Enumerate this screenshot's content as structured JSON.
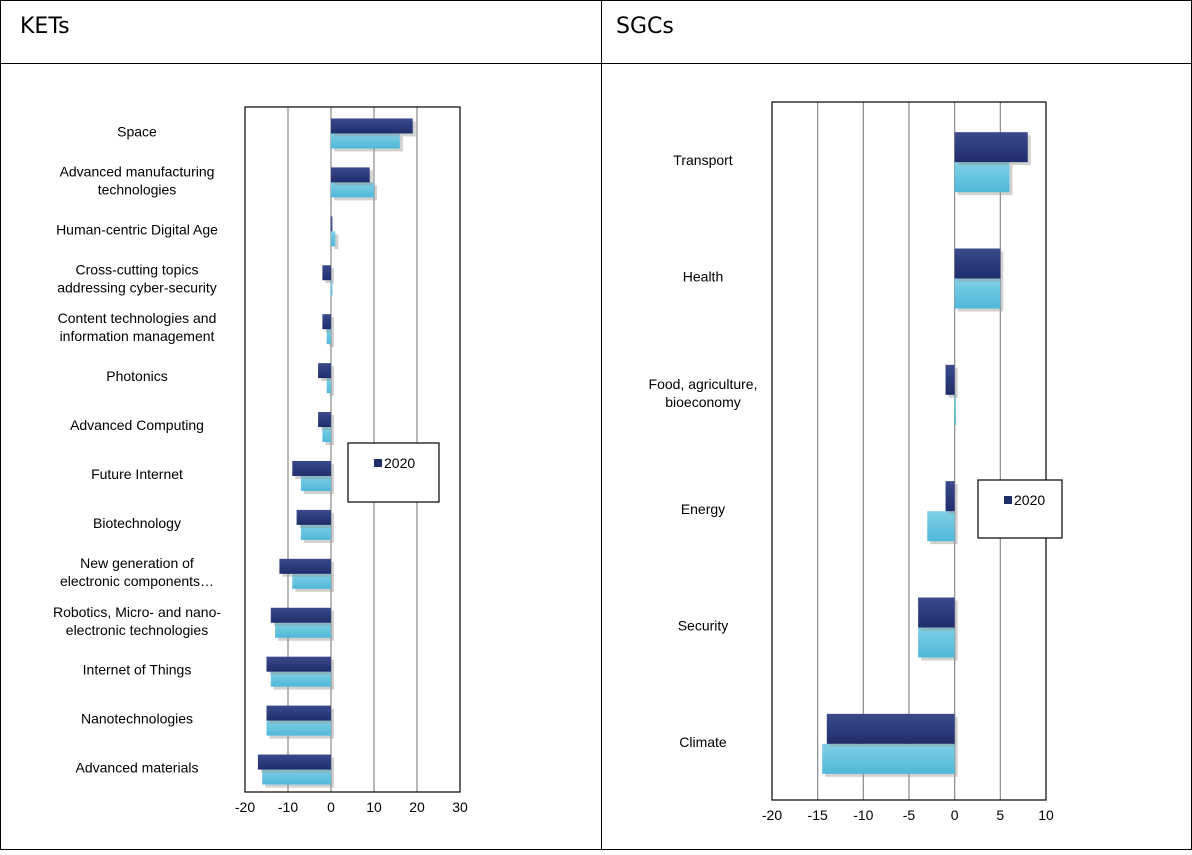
{
  "panels": {
    "left_title": "KETs",
    "right_title": "SGCs"
  },
  "colors": {
    "dark_series": "#1f2d6b",
    "light_series": "#4fb8d8",
    "grid": "#8a8a8a"
  },
  "chart_data": [
    {
      "type": "bar",
      "orientation": "horizontal",
      "legend": {
        "position": "right-middle",
        "entries": [
          "2020"
        ]
      },
      "categories": [
        "Space",
        "Advanced manufacturing technologies",
        "Human-centric Digital Age",
        "Cross-cutting topics addressing cyber-security",
        "Content technologies and information management",
        "Photonics",
        "Advanced Computing",
        "Future Internet",
        "Biotechnology",
        "New generation of electronic components…",
        "Robotics, Micro- and nano-electronic technologies",
        "Internet of Things",
        "Nanotechnologies",
        "Advanced materials"
      ],
      "category_lines": [
        [
          "Space"
        ],
        [
          "Advanced manufacturing",
          "technologies"
        ],
        [
          "Human-centric Digital Age"
        ],
        [
          "Cross-cutting topics",
          "addressing cyber-security"
        ],
        [
          "Content technologies and",
          "information management"
        ],
        [
          "Photonics"
        ],
        [
          "Advanced Computing"
        ],
        [
          "Future Internet"
        ],
        [
          "Biotechnology"
        ],
        [
          "New generation of",
          "electronic components…"
        ],
        [
          "Robotics, Micro- and nano-",
          "electronic technologies"
        ],
        [
          "Internet of Things"
        ],
        [
          "Nanotechnologies"
        ],
        [
          "Advanced materials"
        ]
      ],
      "series": [
        {
          "name": "2020",
          "values": [
            19,
            9,
            0,
            -2,
            -2,
            -3,
            -3,
            -9,
            -8,
            -12,
            -14,
            -15,
            -15,
            -17
          ]
        },
        {
          "values": [
            16,
            10,
            1,
            0,
            -1,
            -1,
            -2,
            -7,
            -7,
            -9,
            -13,
            -14,
            -15,
            -16
          ]
        }
      ],
      "xlim": [
        -20,
        30
      ],
      "xticks": [
        -20,
        -10,
        0,
        10,
        20,
        30
      ],
      "xtick_labels": [
        "-20",
        "-10",
        "0",
        "10",
        "20",
        "30"
      ],
      "grid": true
    },
    {
      "type": "bar",
      "orientation": "horizontal",
      "legend": {
        "position": "right-middle",
        "entries": [
          "2020"
        ]
      },
      "categories": [
        "Transport",
        "Health",
        "Food, agriculture, bioeconomy",
        "Energy",
        "Security",
        "Climate"
      ],
      "category_lines": [
        [
          "Transport"
        ],
        [
          "Health"
        ],
        [
          "Food, agriculture,",
          "bioeconomy"
        ],
        [
          "Energy"
        ],
        [
          "Security"
        ],
        [
          "Climate"
        ]
      ],
      "series": [
        {
          "name": "2020",
          "values": [
            8,
            5,
            -1,
            -1,
            -4,
            -14
          ]
        },
        {
          "values": [
            6,
            5,
            0,
            -3,
            -4,
            -14.5
          ]
        }
      ],
      "xlim": [
        -20,
        10
      ],
      "xticks": [
        -20,
        -15,
        -10,
        -5,
        0,
        5,
        10
      ],
      "xtick_labels": [
        "-20",
        "-15",
        "-10",
        "-5",
        "0",
        "5",
        "10"
      ],
      "grid": true
    }
  ]
}
